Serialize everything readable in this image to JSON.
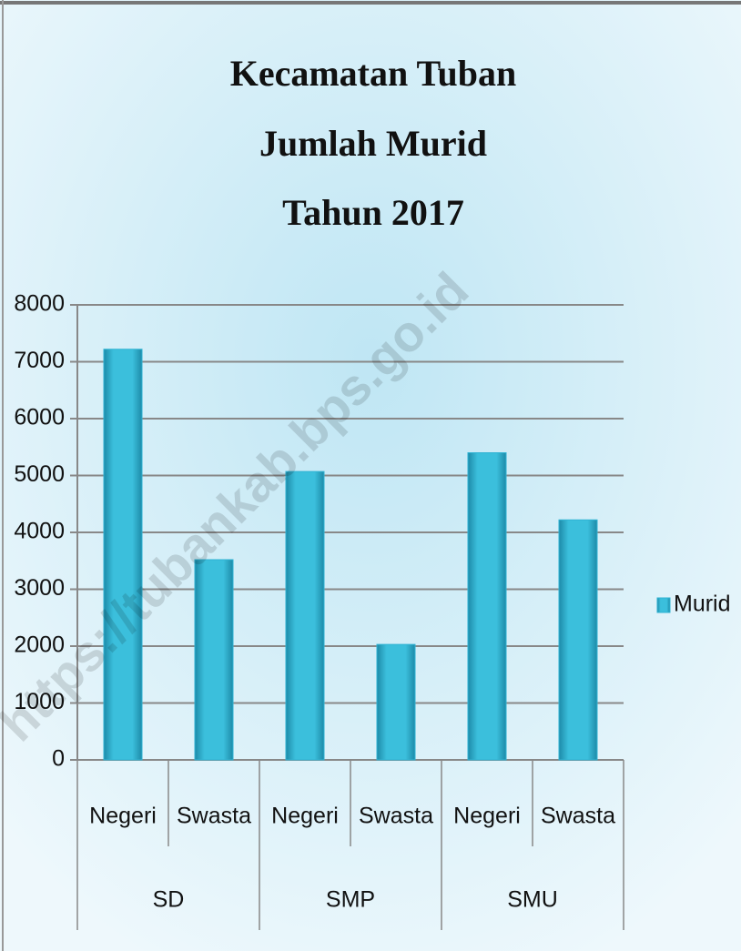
{
  "chart_data": {
    "type": "bar",
    "title": [
      "Kecamatan Tuban",
      "Jumlah Murid",
      "Tahun 2017"
    ],
    "categories": [
      "Negeri",
      "Swasta",
      "Negeri",
      "Swasta",
      "Negeri",
      "Swasta"
    ],
    "groups": [
      "SD",
      "SMP",
      "SMU"
    ],
    "series": [
      {
        "name": "Murid",
        "color": "#2fb3d3",
        "values": [
          7220,
          3520,
          5070,
          2030,
          5400,
          4220
        ]
      }
    ],
    "ylim": [
      0,
      8000
    ],
    "yticks": [
      0,
      1000,
      2000,
      3000,
      4000,
      5000,
      6000,
      7000,
      8000
    ],
    "grid": true,
    "legend": "right",
    "watermark": "https://tubankab.bps.go.id"
  }
}
